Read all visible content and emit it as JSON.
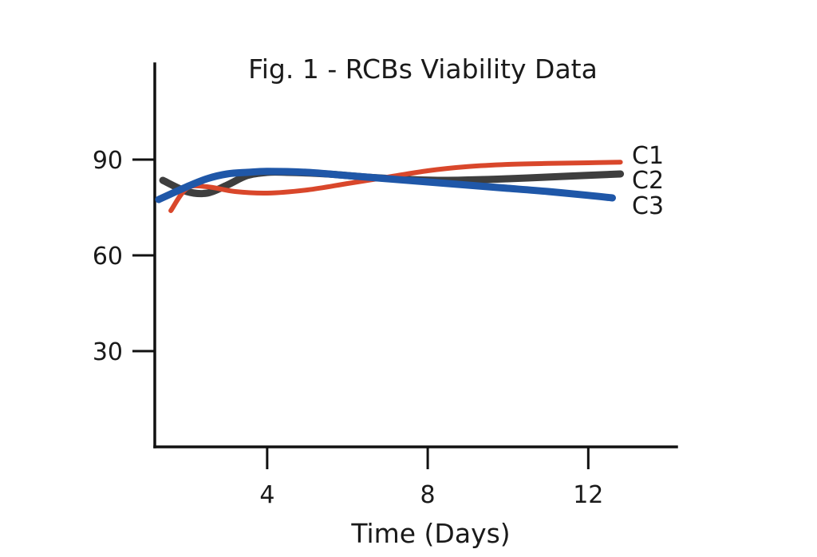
{
  "chart_data": {
    "type": "line",
    "title": "Fig. 1 - RCBs Viability Data",
    "xlabel": "Time (Days)",
    "ylabel": "",
    "xlim": [
      1.2,
      14.2
    ],
    "ylim": [
      0,
      120
    ],
    "x_ticks": [
      4,
      8,
      12
    ],
    "y_ticks": [
      30,
      60,
      90
    ],
    "grid": false,
    "legend": "inline-right",
    "series": [
      {
        "name": "C1",
        "color": "#d9472b",
        "x": [
          1.6,
          2.0,
          2.5,
          3.2,
          4.0,
          5.0,
          6.0,
          7.0,
          8.0,
          9.0,
          10.0,
          11.0,
          12.0,
          12.8
        ],
        "y": [
          74,
          81,
          81.5,
          80,
          79.5,
          80.5,
          82.5,
          84.5,
          86.5,
          87.8,
          88.5,
          88.8,
          89,
          89.2
        ]
      },
      {
        "name": "C2",
        "color": "#3e3e3e",
        "x": [
          1.4,
          2.0,
          2.5,
          3.0,
          3.5,
          4.0,
          4.5,
          5.5,
          6.5,
          7.5,
          8.5,
          10.0,
          11.5,
          12.8
        ],
        "y": [
          83.5,
          80,
          79.5,
          82,
          85,
          86,
          86,
          85.5,
          84.5,
          83.8,
          83.5,
          84,
          84.8,
          85.5
        ]
      },
      {
        "name": "C3",
        "color": "#1f57a8",
        "x": [
          1.3,
          2.0,
          2.5,
          3.0,
          3.5,
          4.0,
          5.0,
          6.0,
          7.0,
          8.0,
          9.0,
          10.0,
          11.0,
          12.0,
          12.6
        ],
        "y": [
          77.5,
          81.5,
          84,
          85.5,
          86,
          86.3,
          86,
          85,
          84,
          83,
          82,
          81,
          80,
          78.8,
          78
        ]
      }
    ]
  }
}
